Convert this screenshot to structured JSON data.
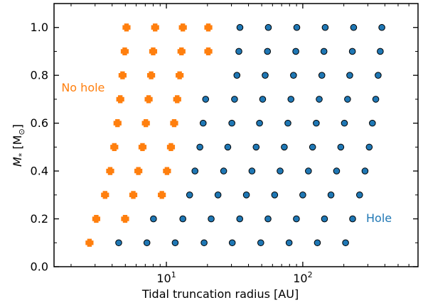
{
  "chart_data": {
    "type": "scatter",
    "xscale": "log",
    "xlim": [
      1.5,
      700
    ],
    "ylim": [
      0.0,
      1.1
    ],
    "xlabel": "Tidal truncation radius [AU]",
    "ylabel_parts": [
      "M",
      "*",
      " [M",
      "⊙",
      "]"
    ],
    "xticks": [
      {
        "value": 10,
        "base": "10",
        "exp": "1"
      },
      {
        "value": 100,
        "base": "10",
        "exp": "2"
      }
    ],
    "yticks": [
      "0.0",
      "0.2",
      "0.4",
      "0.6",
      "0.8",
      "1.0"
    ],
    "series": [
      {
        "marker": "plus",
        "color": "#ff7f0e",
        "points": [
          [
            2.73,
            0.1
          ],
          [
            3.06,
            0.2
          ],
          [
            4.98,
            0.2
          ],
          [
            3.55,
            0.3
          ],
          [
            5.72,
            0.3
          ],
          [
            9.26,
            0.3
          ],
          [
            3.87,
            0.4
          ],
          [
            6.23,
            0.4
          ],
          [
            10.1,
            0.4
          ],
          [
            4.15,
            0.5
          ],
          [
            6.68,
            0.5
          ],
          [
            10.8,
            0.5
          ],
          [
            4.38,
            0.6
          ],
          [
            7.07,
            0.6
          ],
          [
            11.4,
            0.6
          ],
          [
            4.59,
            0.7
          ],
          [
            7.41,
            0.7
          ],
          [
            12.0,
            0.7
          ],
          [
            4.77,
            0.8
          ],
          [
            7.73,
            0.8
          ],
          [
            12.5,
            0.8
          ],
          [
            4.95,
            0.9
          ],
          [
            8.0,
            0.9
          ],
          [
            12.9,
            0.9
          ],
          [
            20.3,
            0.9
          ],
          [
            5.1,
            1.0
          ],
          [
            8.27,
            1.0
          ],
          [
            13.2,
            1.0
          ],
          [
            20.3,
            1.0
          ]
        ]
      },
      {
        "marker": "circle",
        "color": "#1f77b4",
        "points": [
          [
            4.47,
            0.1
          ],
          [
            7.2,
            0.1
          ],
          [
            11.6,
            0.1
          ],
          [
            18.9,
            0.1
          ],
          [
            30.4,
            0.1
          ],
          [
            49.2,
            0.1
          ],
          [
            79.4,
            0.1
          ],
          [
            128,
            0.1
          ],
          [
            206,
            0.1
          ],
          [
            8.04,
            0.2
          ],
          [
            13.2,
            0.2
          ],
          [
            21.3,
            0.2
          ],
          [
            34.5,
            0.2
          ],
          [
            55.6,
            0.2
          ],
          [
            89.8,
            0.2
          ],
          [
            144.3,
            0.2
          ],
          [
            232,
            0.2
          ],
          [
            14.8,
            0.3
          ],
          [
            23.9,
            0.3
          ],
          [
            38.6,
            0.3
          ],
          [
            62.2,
            0.3
          ],
          [
            100,
            0.3
          ],
          [
            161,
            0.3
          ],
          [
            261,
            0.3
          ],
          [
            16.2,
            0.4
          ],
          [
            26.3,
            0.4
          ],
          [
            42.4,
            0.4
          ],
          [
            68.2,
            0.4
          ],
          [
            110,
            0.4
          ],
          [
            177,
            0.4
          ],
          [
            286,
            0.4
          ],
          [
            17.6,
            0.5
          ],
          [
            28.2,
            0.5
          ],
          [
            45.5,
            0.5
          ],
          [
            73.2,
            0.5
          ],
          [
            118,
            0.5
          ],
          [
            190,
            0.5
          ],
          [
            307,
            0.5
          ],
          [
            18.6,
            0.6
          ],
          [
            30.2,
            0.6
          ],
          [
            48.2,
            0.6
          ],
          [
            77.8,
            0.6
          ],
          [
            125.6,
            0.6
          ],
          [
            202,
            0.6
          ],
          [
            324,
            0.6
          ],
          [
            19.4,
            0.7
          ],
          [
            31.6,
            0.7
          ],
          [
            50.8,
            0.7
          ],
          [
            81.9,
            0.7
          ],
          [
            132,
            0.7
          ],
          [
            213,
            0.7
          ],
          [
            343,
            0.7
          ],
          [
            32.9,
            0.8
          ],
          [
            53.0,
            0.8
          ],
          [
            85.5,
            0.8
          ],
          [
            138,
            0.8
          ],
          [
            221,
            0.8
          ],
          [
            357,
            0.8
          ],
          [
            34.0,
            0.9
          ],
          [
            55.1,
            0.9
          ],
          [
            88.9,
            0.9
          ],
          [
            143,
            0.9
          ],
          [
            231,
            0.9
          ],
          [
            370,
            0.9
          ],
          [
            34.6,
            1.0
          ],
          [
            55.9,
            1.0
          ],
          [
            90.4,
            1.0
          ],
          [
            146,
            1.0
          ],
          [
            236,
            1.0
          ],
          [
            380,
            1.0
          ]
        ]
      }
    ],
    "annotations": [
      {
        "text": "No hole",
        "color": "#ff7f0e",
        "x": 2.45,
        "y": 0.745
      },
      {
        "text": "Hole",
        "color": "#1f77b4",
        "x": 362,
        "y": 0.2
      }
    ]
  }
}
